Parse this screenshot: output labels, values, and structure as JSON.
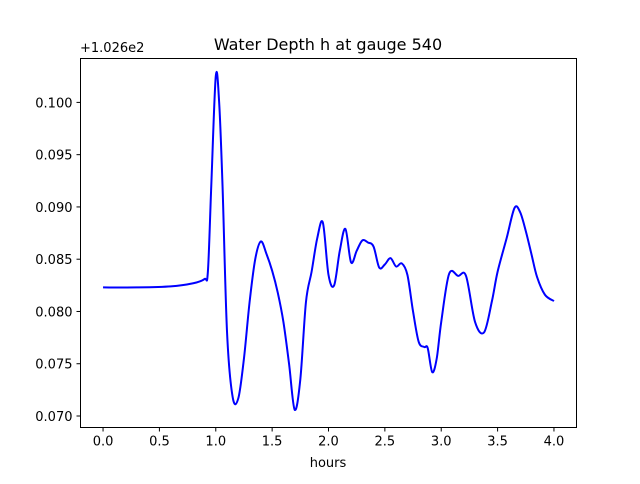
{
  "chart_data": {
    "type": "line",
    "title": "Water Depth h at gauge 540",
    "xlabel": "hours",
    "ylabel": "",
    "offset_label": "+1.026e2",
    "xlim": [
      -0.2,
      4.2
    ],
    "ylim": [
      0.0689,
      0.1042
    ],
    "xticks": [
      0.0,
      0.5,
      1.0,
      1.5,
      2.0,
      2.5,
      3.0,
      3.5,
      4.0
    ],
    "xtick_labels": [
      "0.0",
      "0.5",
      "1.0",
      "1.5",
      "2.0",
      "2.5",
      "3.0",
      "3.5",
      "4.0"
    ],
    "yticks": [
      0.07,
      0.075,
      0.08,
      0.085,
      0.09,
      0.095,
      0.1
    ],
    "ytick_labels": [
      "0.070",
      "0.075",
      "0.080",
      "0.085",
      "0.090",
      "0.095",
      "0.100"
    ],
    "grid": false,
    "series": [
      {
        "name": "h",
        "color": "#0000ff",
        "x": [
          0.0,
          0.3,
          0.6,
          0.8,
          0.9,
          0.93,
          0.96,
          1.0,
          1.03,
          1.06,
          1.1,
          1.15,
          1.2,
          1.25,
          1.3,
          1.35,
          1.4,
          1.45,
          1.5,
          1.55,
          1.6,
          1.65,
          1.7,
          1.75,
          1.8,
          1.85,
          1.9,
          1.95,
          2.0,
          2.05,
          2.1,
          2.15,
          2.2,
          2.25,
          2.3,
          2.35,
          2.4,
          2.45,
          2.5,
          2.55,
          2.6,
          2.65,
          2.7,
          2.75,
          2.8,
          2.85,
          2.88,
          2.92,
          2.96,
          3.0,
          3.07,
          3.15,
          3.22,
          3.3,
          3.38,
          3.45,
          3.5,
          3.58,
          3.65,
          3.7,
          3.75,
          3.8,
          3.85,
          3.92,
          4.0
        ],
        "y": [
          0.0823,
          0.0823,
          0.0824,
          0.0827,
          0.0831,
          0.0838,
          0.092,
          0.1025,
          0.1,
          0.092,
          0.078,
          0.0718,
          0.0717,
          0.0755,
          0.0809,
          0.085,
          0.0867,
          0.0855,
          0.0839,
          0.0818,
          0.079,
          0.075,
          0.0706,
          0.0735,
          0.0809,
          0.0838,
          0.087,
          0.0885,
          0.0835,
          0.0825,
          0.0858,
          0.0879,
          0.0847,
          0.0858,
          0.0868,
          0.0866,
          0.0862,
          0.0842,
          0.0845,
          0.0851,
          0.0843,
          0.0846,
          0.0835,
          0.08,
          0.0771,
          0.0766,
          0.0765,
          0.0742,
          0.0755,
          0.079,
          0.0836,
          0.0834,
          0.0834,
          0.079,
          0.078,
          0.081,
          0.0838,
          0.087,
          0.0899,
          0.0895,
          0.0877,
          0.0855,
          0.0833,
          0.0816,
          0.081
        ]
      }
    ]
  }
}
